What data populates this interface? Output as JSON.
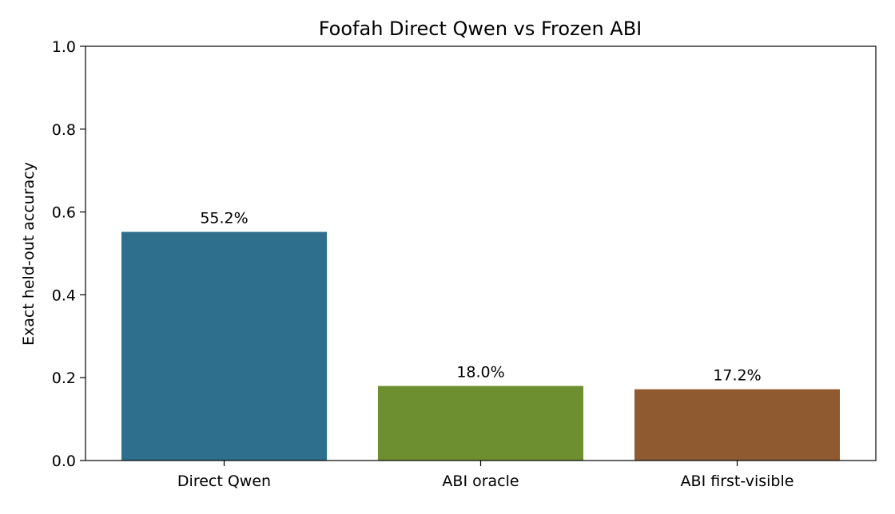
{
  "chart_data": {
    "type": "bar",
    "title": "Foofah Direct Qwen vs Frozen ABI",
    "xlabel": "",
    "ylabel": "Exact held-out accuracy",
    "ylim": [
      0,
      1.0
    ],
    "yticks": [
      "0.0",
      "0.2",
      "0.4",
      "0.6",
      "0.8",
      "1.0"
    ],
    "ytick_values": [
      0,
      0.2,
      0.4,
      0.6,
      0.8,
      1.0
    ],
    "categories": [
      "Direct Qwen",
      "ABI oracle",
      "ABI first-visible"
    ],
    "values": [
      0.552,
      0.18,
      0.172
    ],
    "value_labels": [
      "55.2%",
      "18.0%",
      "17.2%"
    ],
    "colors": [
      "#2e6f8e",
      "#6e8f2f",
      "#8f5a30"
    ],
    "grid": false,
    "legend": "none"
  }
}
